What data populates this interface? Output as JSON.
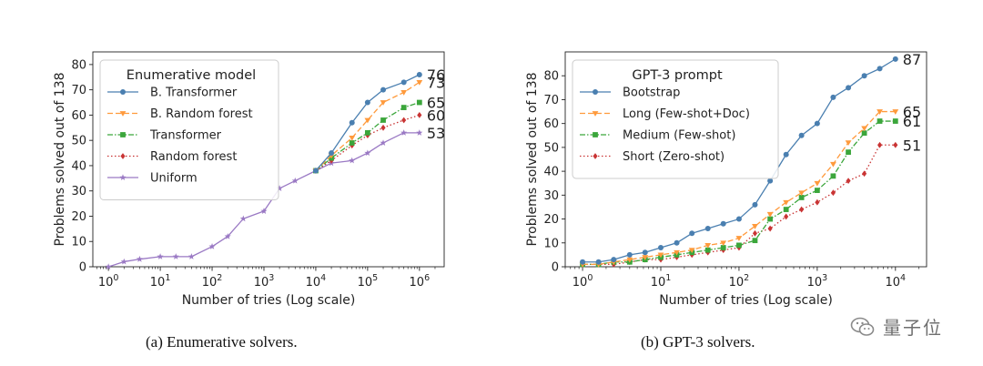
{
  "captions": {
    "a": "(a) Enumerative solvers.",
    "b": "(b) GPT-3 solvers."
  },
  "watermark": "量子位",
  "chart_data": [
    {
      "type": "line",
      "xlabel": "Number of tries (Log scale)",
      "ylabel": "Problems solved out of 138",
      "xscale": "log",
      "xlim": [
        0.5,
        3000000
      ],
      "ylim": [
        0,
        85
      ],
      "xticks": [
        1,
        10,
        100,
        1000,
        10000,
        100000,
        1000000
      ],
      "xtick_labels": [
        "10^0",
        "10^1",
        "10^2",
        "10^3",
        "10^4",
        "10^5",
        "10^6"
      ],
      "yticks": [
        0,
        10,
        20,
        30,
        40,
        50,
        60,
        70,
        80
      ],
      "grid": false,
      "legend_title": "Enumerative model",
      "legend_position": "upper-left",
      "series": [
        {
          "name": "B. Transformer",
          "color": "#4a7fb0",
          "style": "solid",
          "marker": "circle",
          "x": [
            10000,
            20000,
            50000,
            100000,
            200000,
            500000,
            1000000
          ],
          "y": [
            38,
            45,
            57,
            65,
            70,
            73,
            76
          ],
          "end_label": "76"
        },
        {
          "name": "B. Random forest",
          "color": "#ff9a3c",
          "style": "dashed",
          "marker": "triangle-down",
          "x": [
            10000,
            20000,
            50000,
            100000,
            200000,
            500000,
            1000000
          ],
          "y": [
            38,
            44,
            51,
            58,
            65,
            69,
            73
          ],
          "end_label": "73"
        },
        {
          "name": "Transformer",
          "color": "#3ba63b",
          "style": "dashdot",
          "marker": "square",
          "x": [
            10000,
            20000,
            50000,
            100000,
            200000,
            500000,
            1000000
          ],
          "y": [
            38,
            43,
            49,
            53,
            58,
            63,
            65
          ],
          "end_label": "65"
        },
        {
          "name": "Random forest",
          "color": "#c93434",
          "style": "dotted",
          "marker": "diamond",
          "x": [
            10000,
            20000,
            50000,
            100000,
            200000,
            500000,
            1000000
          ],
          "y": [
            38,
            42,
            48,
            52,
            55,
            58,
            60
          ],
          "end_label": "60"
        },
        {
          "name": "Uniform",
          "color": "#9a79c4",
          "style": "solid",
          "marker": "star",
          "x": [
            1,
            2,
            4,
            10,
            20,
            40,
            100,
            200,
            400,
            1000,
            2000,
            4000,
            10000,
            20000,
            50000,
            100000,
            200000,
            500000,
            1000000
          ],
          "y": [
            0,
            2,
            3,
            4,
            4,
            4,
            8,
            12,
            19,
            22,
            31,
            34,
            38,
            41,
            42,
            45,
            49,
            53,
            53
          ],
          "end_label": "53"
        }
      ]
    },
    {
      "type": "line",
      "xlabel": "Number of tries (Log scale)",
      "ylabel": "Problems solved out of 138",
      "xscale": "log",
      "xlim": [
        0.6,
        25000
      ],
      "ylim": [
        0,
        90
      ],
      "xticks": [
        1,
        10,
        100,
        1000,
        10000
      ],
      "xtick_labels": [
        "10^0",
        "10^1",
        "10^2",
        "10^3",
        "10^4"
      ],
      "yticks": [
        0,
        10,
        20,
        30,
        40,
        50,
        60,
        70,
        80
      ],
      "grid": false,
      "legend_title": "GPT-3 prompt",
      "legend_position": "upper-left",
      "series": [
        {
          "name": "Bootstrap",
          "color": "#4a7fb0",
          "style": "solid",
          "marker": "circle",
          "x": [
            1,
            1.6,
            2.5,
            4,
            6.3,
            10,
            16,
            25,
            40,
            63,
            100,
            160,
            250,
            400,
            630,
            1000,
            1600,
            2500,
            4000,
            6300,
            10000
          ],
          "y": [
            2,
            2,
            3,
            5,
            6,
            8,
            10,
            14,
            16,
            18,
            20,
            26,
            36,
            47,
            55,
            60,
            71,
            75,
            80,
            83,
            87
          ],
          "end_label": "87"
        },
        {
          "name": "Long (Few-shot+Doc)",
          "color": "#ff9a3c",
          "style": "dashed",
          "marker": "triangle-down",
          "x": [
            1,
            1.6,
            2.5,
            4,
            6.3,
            10,
            16,
            25,
            40,
            63,
            100,
            160,
            250,
            400,
            630,
            1000,
            1600,
            2500,
            4000,
            6300,
            10000
          ],
          "y": [
            1,
            1,
            2,
            3,
            4,
            5,
            6,
            7,
            9,
            10,
            12,
            17,
            22,
            27,
            31,
            35,
            43,
            52,
            58,
            65,
            65
          ],
          "end_label": "65"
        },
        {
          "name": "Medium (Few-shot)",
          "color": "#3ba63b",
          "style": "dashdot",
          "marker": "square",
          "x": [
            1,
            1.6,
            2.5,
            4,
            6.3,
            10,
            16,
            25,
            40,
            63,
            100,
            160,
            250,
            400,
            630,
            1000,
            1600,
            2500,
            4000,
            6300,
            10000
          ],
          "y": [
            1,
            1,
            2,
            2,
            3,
            4,
            5,
            6,
            7,
            8,
            9,
            11,
            20,
            24,
            29,
            32,
            38,
            48,
            56,
            61,
            61
          ],
          "end_label": "61"
        },
        {
          "name": "Short (Zero-shot)",
          "color": "#c93434",
          "style": "dotted",
          "marker": "diamond",
          "x": [
            1,
            1.6,
            2.5,
            4,
            6.3,
            10,
            16,
            25,
            40,
            63,
            100,
            160,
            250,
            400,
            630,
            1000,
            1600,
            2500,
            4000,
            6300,
            10000
          ],
          "y": [
            1,
            1,
            1,
            2,
            3,
            3,
            4,
            5,
            6,
            7,
            8,
            14,
            16,
            21,
            24,
            27,
            31,
            36,
            39,
            51,
            51
          ],
          "end_label": "51"
        }
      ]
    }
  ]
}
